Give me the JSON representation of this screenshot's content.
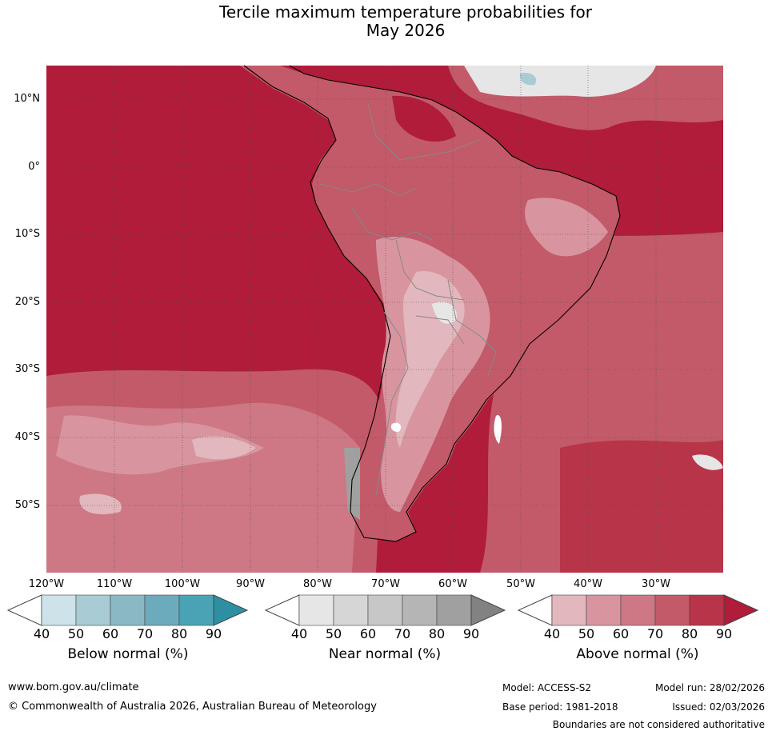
{
  "title": {
    "line1": "Tercile maximum temperature probabilities for",
    "line2": "May 2026"
  },
  "map": {
    "latitude_labels": [
      "10°N",
      "0°",
      "10°S",
      "20°S",
      "30°S",
      "40°S",
      "50°S"
    ],
    "longitude_labels": [
      "120°W",
      "110°W",
      "100°W",
      "90°W",
      "80°W",
      "70°W",
      "60°W",
      "50°W",
      "40°W",
      "30°W"
    ],
    "dominant_category": "Above normal"
  },
  "legends": [
    {
      "name": "Below normal (%)",
      "ticks": [
        "40",
        "50",
        "60",
        "70",
        "80",
        "90"
      ],
      "colors": [
        "#ffffff",
        "#cde3e9",
        "#a9cbd3",
        "#8ab9c5",
        "#6cabbb",
        "#4aa3b5",
        "#2e8fa3"
      ]
    },
    {
      "name": "Near normal (%)",
      "ticks": [
        "40",
        "50",
        "60",
        "70",
        "80",
        "90"
      ],
      "colors": [
        "#ffffff",
        "#e6e6e6",
        "#d6d6d6",
        "#c7c7c7",
        "#b5b5b5",
        "#a0a0a0",
        "#828282"
      ]
    },
    {
      "name": "Above normal (%)",
      "ticks": [
        "40",
        "50",
        "60",
        "70",
        "80",
        "90"
      ],
      "colors": [
        "#ffffff",
        "#e2b7bd",
        "#d8959f",
        "#cd7884",
        "#c35a69",
        "#b83448",
        "#b01c3a"
      ]
    }
  ],
  "footer": {
    "website": "www.bom.gov.au/climate",
    "copyright": "© Commonwealth of Australia 2026, Australian Bureau of Meteorology",
    "model": "Model: ACCESS-S2",
    "base_period": "Base period: 1981-2018",
    "model_run": "Model run: 28/02/2026",
    "issued": "Issued: 02/03/2026",
    "disclaimer": "Boundaries are not considered authoritative"
  }
}
